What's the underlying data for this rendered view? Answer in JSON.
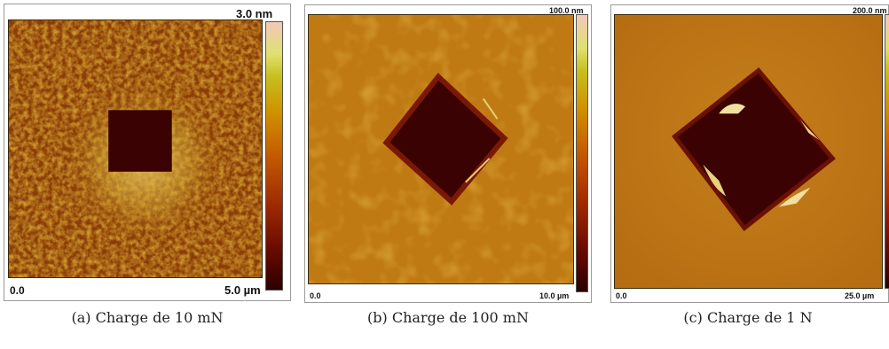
{
  "panels": [
    {
      "max_height": "3.0 nm",
      "origin": "0.0",
      "scan_size": "5.0 µm",
      "caption_label": "(a)",
      "caption_text": "Charge de 10 mN"
    },
    {
      "max_height": "100.0 nm",
      "origin": "0.0",
      "scan_size": "10.0 µm",
      "caption_label": "(b)",
      "caption_text": "Charge de 100 mN"
    },
    {
      "max_height": "200.0 nm",
      "origin": "0.0",
      "scan_size": "25.0 µm",
      "caption_label": "(c)",
      "caption_text": "Charge de 1 N"
    }
  ],
  "colors": {
    "low": "#2a0000",
    "mid": "#c45a00",
    "high": "#f2c8b8"
  }
}
